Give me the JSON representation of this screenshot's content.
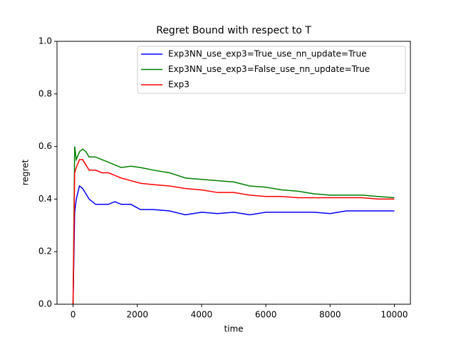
{
  "chart_data": {
    "type": "line",
    "title": "Regret Bound with respect to T",
    "xlabel": "time",
    "ylabel": "regret",
    "x": [
      0,
      50,
      100,
      200,
      300,
      400,
      500,
      700,
      900,
      1100,
      1300,
      1500,
      1800,
      2100,
      2500,
      3000,
      3500,
      4000,
      4500,
      5000,
      5500,
      6000,
      6500,
      7000,
      7500,
      8000,
      8500,
      9000,
      9500,
      10000
    ],
    "series": [
      {
        "name": "Exp3NN_use_exp3=True_use_nn_update=True",
        "color": "#0000ff",
        "values": [
          0.0,
          0.35,
          0.4,
          0.45,
          0.44,
          0.42,
          0.4,
          0.38,
          0.38,
          0.38,
          0.39,
          0.38,
          0.38,
          0.36,
          0.36,
          0.355,
          0.34,
          0.35,
          0.345,
          0.35,
          0.34,
          0.35,
          0.35,
          0.35,
          0.35,
          0.345,
          0.355,
          0.355,
          0.355,
          0.355
        ]
      },
      {
        "name": "Exp3NN_use_exp3=False_use_nn_update=True",
        "color": "#008000",
        "values": [
          0.0,
          0.6,
          0.55,
          0.58,
          0.59,
          0.58,
          0.56,
          0.56,
          0.55,
          0.54,
          0.53,
          0.52,
          0.525,
          0.52,
          0.51,
          0.5,
          0.48,
          0.475,
          0.47,
          0.465,
          0.45,
          0.445,
          0.435,
          0.43,
          0.42,
          0.415,
          0.415,
          0.415,
          0.41,
          0.405
        ]
      },
      {
        "name": "Exp3",
        "color": "#ff0000",
        "values": [
          0.0,
          0.5,
          0.52,
          0.55,
          0.55,
          0.53,
          0.51,
          0.51,
          0.5,
          0.5,
          0.49,
          0.48,
          0.47,
          0.46,
          0.455,
          0.45,
          0.44,
          0.435,
          0.425,
          0.425,
          0.415,
          0.41,
          0.41,
          0.405,
          0.405,
          0.405,
          0.405,
          0.405,
          0.4,
          0.4
        ]
      }
    ],
    "xlim": [
      -500,
      10500
    ],
    "xticks": [
      0,
      2000,
      4000,
      6000,
      8000,
      10000
    ],
    "ylim": [
      0,
      1
    ],
    "yticks": [
      {
        "value": 0,
        "label": "0.0"
      },
      0.2,
      0.4,
      0.6,
      0.8,
      {
        "value": 1,
        "label": "1.0"
      }
    ],
    "legend": "upper right"
  }
}
